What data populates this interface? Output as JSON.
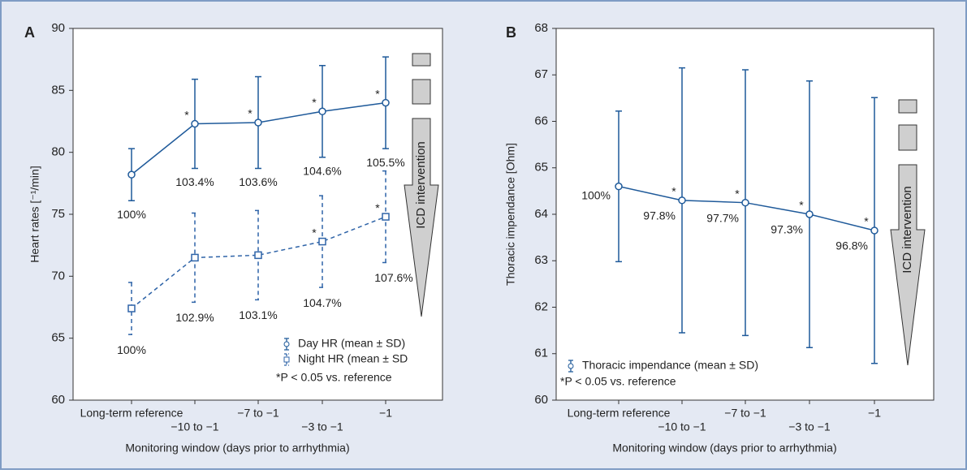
{
  "chart_data": [
    {
      "type": "line",
      "panel_label": "A",
      "x_label": "Monitoring window (days prior to arrhythmia)",
      "y_label": "Heart rates [⁻¹/min]",
      "categories": [
        "Long-term reference",
        "−10 to −1",
        "−7 to −1",
        "−3 to −1",
        "−1"
      ],
      "ylim": [
        60,
        90
      ],
      "yticks": [
        60,
        65,
        70,
        75,
        80,
        85,
        90
      ],
      "series": [
        {
          "name": "Day HR (mean ± SD)",
          "color": "#1f5a9a",
          "marker": "circle",
          "dashed": false,
          "values": [
            78.2,
            82.3,
            82.4,
            83.3,
            84.0
          ],
          "errors": [
            2.1,
            3.6,
            3.7,
            3.7,
            3.7
          ],
          "percent_labels": [
            "100%",
            "103.4%",
            "103.6%",
            "104.6%",
            "105.5%"
          ],
          "asterisks": [
            null,
            "*",
            "*",
            "*",
            "*"
          ]
        },
        {
          "name": "Night HR (mean ± SD",
          "color": "#2f64a8",
          "marker": "square",
          "dashed": true,
          "values": [
            67.4,
            71.5,
            71.7,
            72.8,
            74.8
          ],
          "errors": [
            2.1,
            3.6,
            3.6,
            3.7,
            3.7
          ],
          "percent_labels": [
            "100%",
            "102.9%",
            "103.1%",
            "104.7%",
            "107.6%"
          ],
          "asterisks": [
            null,
            null,
            null,
            "*",
            "*"
          ]
        }
      ],
      "footnote": "*P < 0.05 vs. reference",
      "annotation": "ICD intervention"
    },
    {
      "type": "line",
      "panel_label": "B",
      "x_label": "Monitoring window (days prior to arrhythmia)",
      "y_label": "Thoracic impendance [Ohm]",
      "categories": [
        "Long-term reference",
        "−10 to −1",
        "−7 to −1",
        "−3 to −1",
        "−1"
      ],
      "ylim": [
        60,
        68
      ],
      "yticks": [
        60,
        61,
        62,
        63,
        64,
        65,
        66,
        67,
        68
      ],
      "series": [
        {
          "name": "Thoracic impendance (mean ± SD)",
          "color": "#1f5a9a",
          "marker": "circle",
          "dashed": false,
          "values": [
            64.6,
            64.3,
            64.25,
            64.0,
            63.65
          ],
          "errors": [
            1.62,
            2.85,
            2.86,
            2.87,
            2.86
          ],
          "percent_labels": [
            "100%",
            "97.8%",
            "97.7%",
            "97.3%",
            "96.8%"
          ],
          "asterisks": [
            null,
            "*",
            "*",
            "*",
            "*"
          ]
        }
      ],
      "footnote": "*P < 0.05 vs. reference",
      "annotation": "ICD intervention"
    }
  ]
}
